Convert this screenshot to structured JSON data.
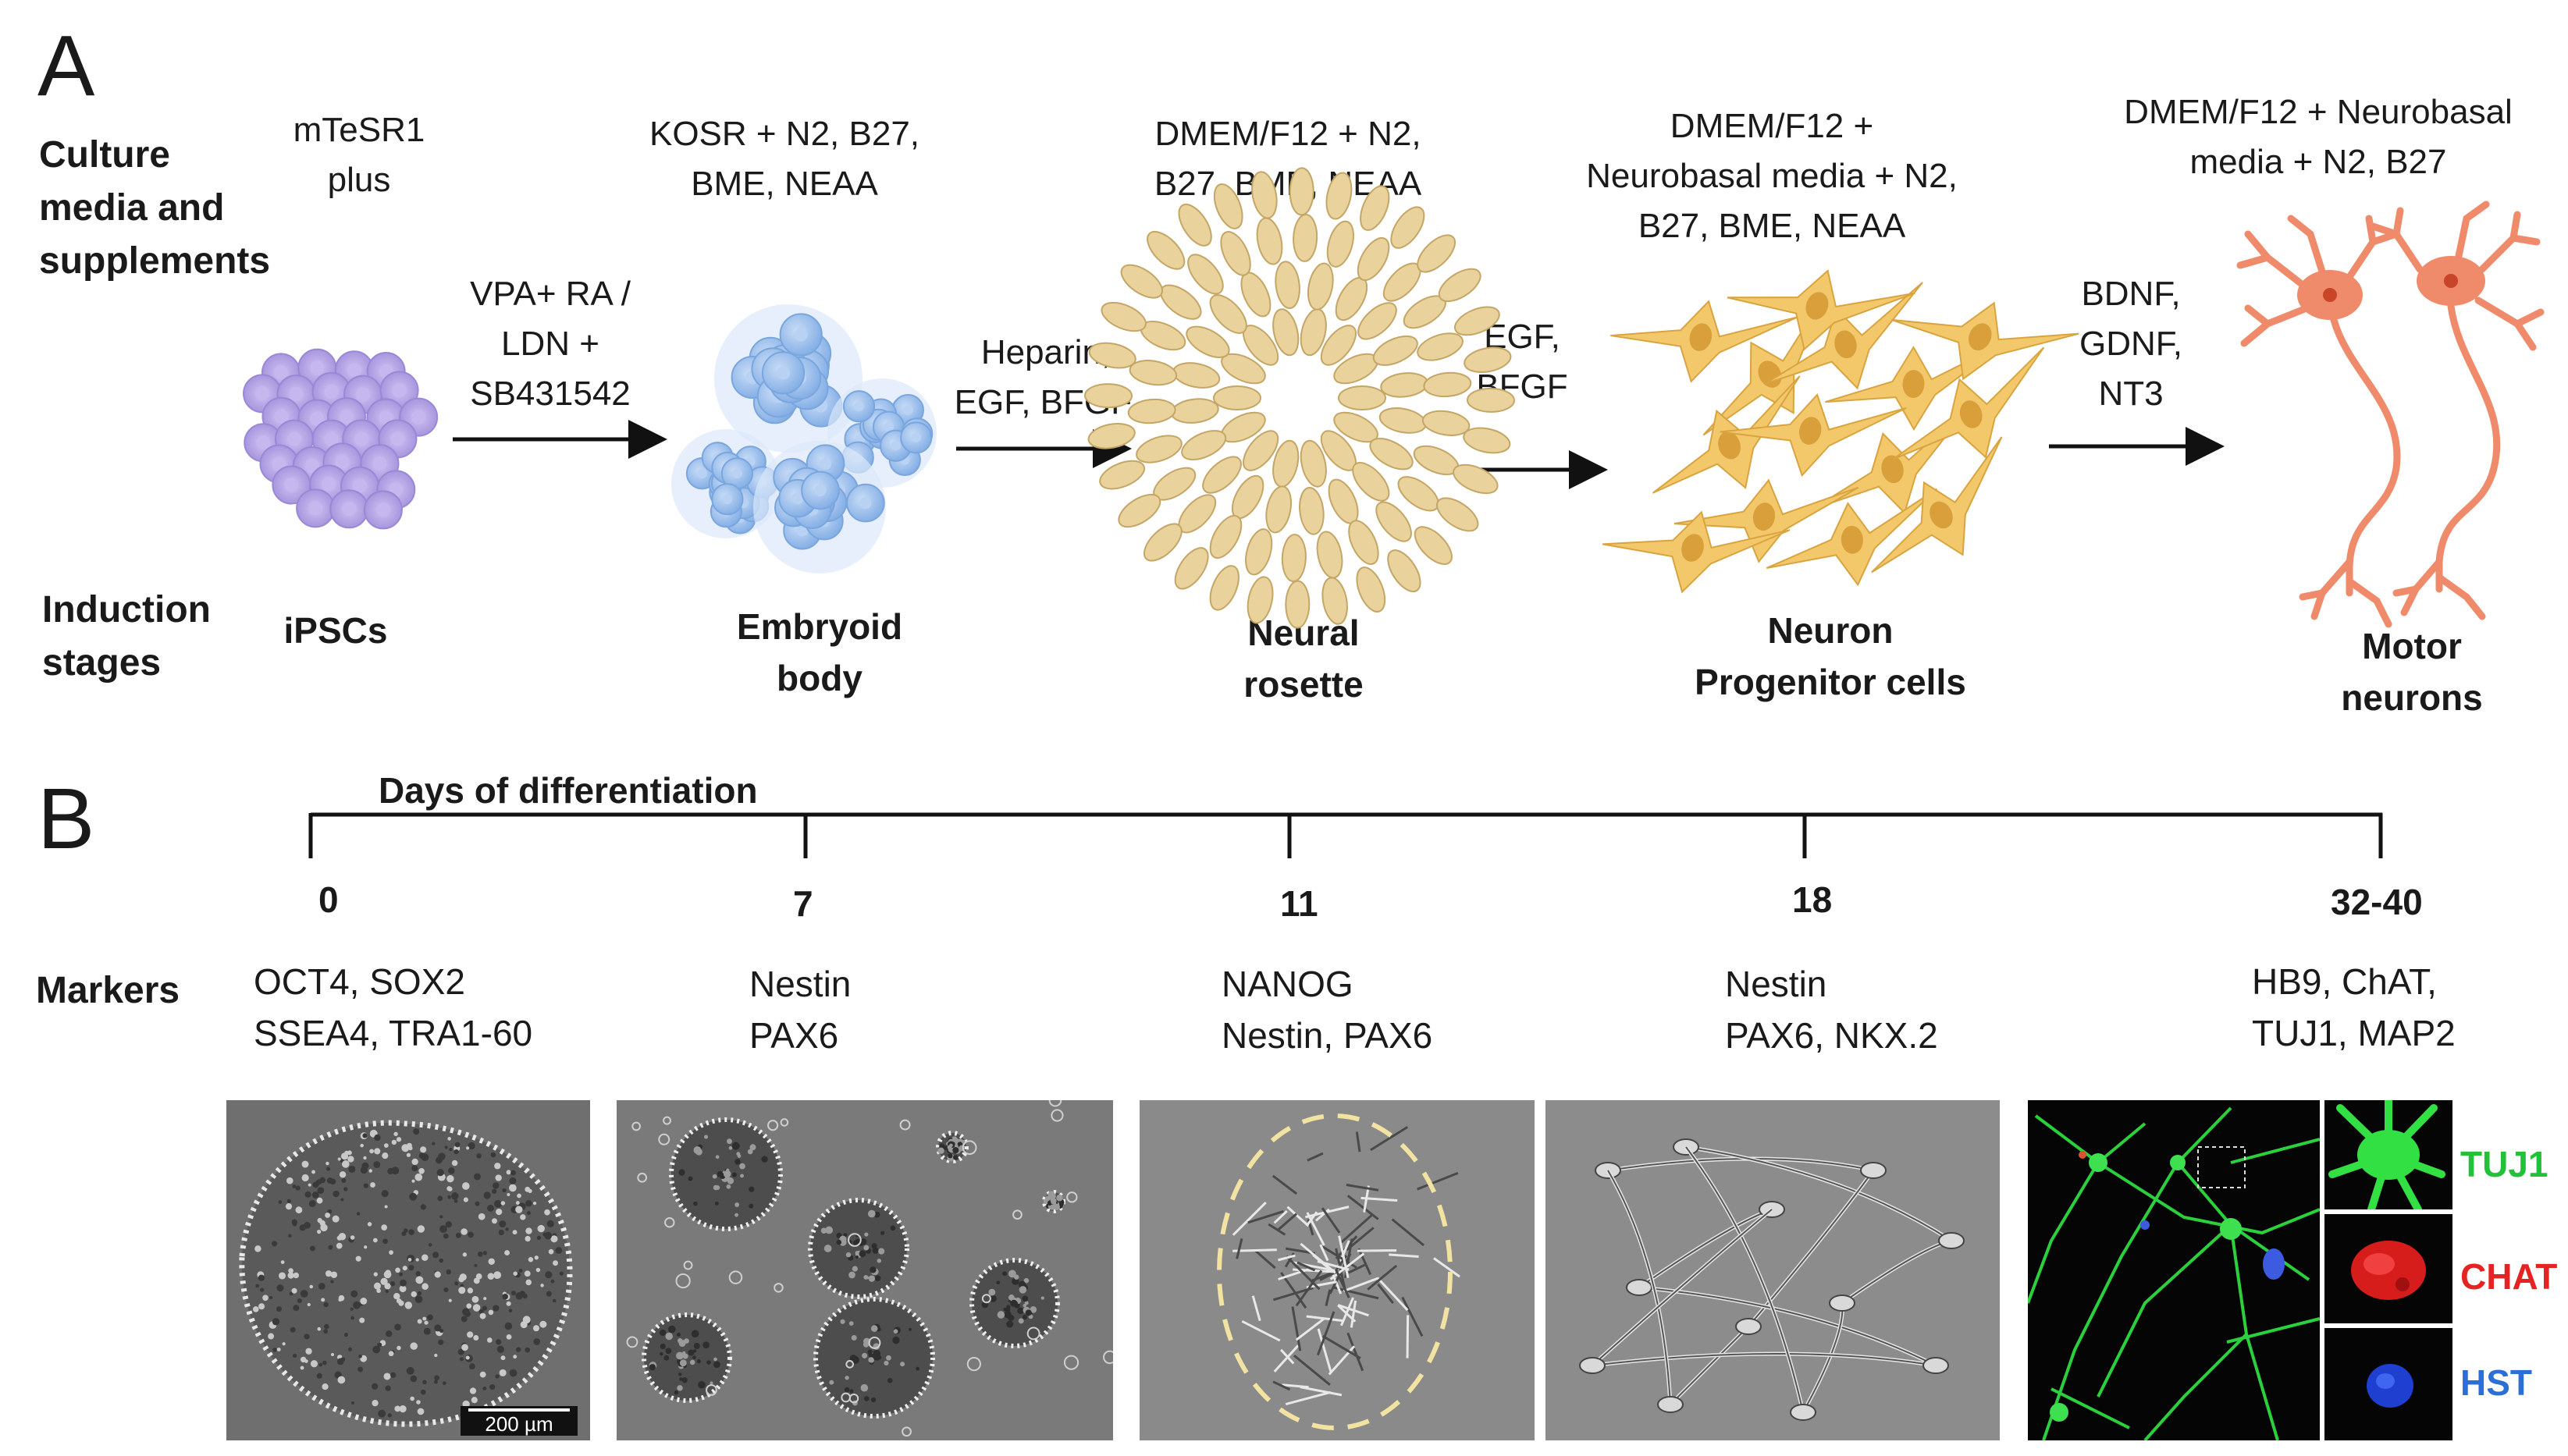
{
  "panel_a": {
    "letter": "A",
    "row_labels": {
      "media": [
        "Culture",
        "media and",
        "supplements"
      ],
      "stages": [
        "Induction",
        "stages"
      ]
    },
    "media": [
      [
        "mTeSR1",
        "plus"
      ],
      [
        "KOSR + N2, B27,",
        "BME, NEAA"
      ],
      [
        "DMEM/F12 + N2,",
        "B27, BME, NEAA"
      ],
      [
        "DMEM/F12 +",
        "Neurobasal media + N2,",
        "B27, BME, NEAA"
      ],
      [
        "DMEM/F12 + Neurobasal",
        "media + N2, B27"
      ]
    ],
    "factors": [
      [
        "VPA+ RA /",
        "LDN +",
        "SB431542"
      ],
      [
        "Heparin,",
        "EGF, BFGF,"
      ],
      [
        "EGF,",
        "BFGF"
      ],
      [
        "BDNF,",
        "GDNF,",
        "NT3"
      ]
    ],
    "stages": [
      [
        "iPSCs"
      ],
      [
        "Embryoid",
        "body"
      ],
      [
        "Neural",
        "rosette"
      ],
      [
        "Neuron",
        "Progenitor cells"
      ],
      [
        "Motor",
        "neurons"
      ]
    ],
    "colors": {
      "ipsc": "#b3a4e3",
      "embryoid": "#9cc0ea",
      "rosette": "#e8cf98",
      "progenitor": "#f1c66a",
      "motor": "#ef8a6a"
    }
  },
  "panel_b": {
    "letter": "B",
    "timeline_title": "Days of differentiation",
    "days": [
      "0",
      "7",
      "11",
      "18",
      "32-40"
    ],
    "markers_label": "Markers",
    "markers": [
      [
        "OCT4, SOX2",
        "SSEA4, TRA1-60"
      ],
      [
        "Nestin",
        "PAX6"
      ],
      [
        "NANOG",
        "Nestin, PAX6"
      ],
      [
        "Nestin",
        "PAX6, NKX.2"
      ],
      [
        "HB9, ChAT,",
        "TUJ1, MAP2"
      ]
    ],
    "scale_bar": "200 µm",
    "channels": [
      {
        "label": "TUJ1",
        "color": "#22c13a"
      },
      {
        "label": "CHAT",
        "color": "#e52323"
      },
      {
        "label": "HST",
        "color": "#2b6fd6"
      }
    ]
  }
}
